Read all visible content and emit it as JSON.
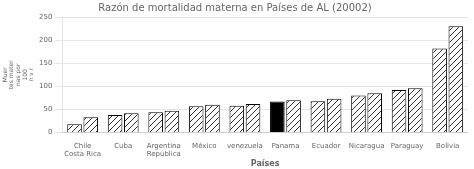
{
  "chart_data": {
    "type": "bar",
    "title": "Razón de mortalidad materna en Países de AL (20002)",
    "xlabel": "Países",
    "ylabel": "Muer\ntes mater\nnas por\n100\nn v r",
    "categories": [
      "Chile\nCosta Rica",
      "Cuba",
      "Argentina\nRepublica",
      "México",
      "venezuela",
      "Panama",
      "Ecuador",
      "Nicaragua",
      "Paraguay",
      "Bolivia"
    ],
    "series": [
      {
        "values": [
          18,
          38,
          44,
          57,
          58,
          67,
          68,
          80,
          92,
          182
        ],
        "colors": [
          "#ffffff",
          "#ffffff",
          "#ffffff",
          "#ffffff",
          "#ffffff",
          "#000000",
          "#ffffff",
          "#ffffff",
          "#ffffff",
          "#ffffff"
        ]
      },
      {
        "values": [
          33,
          42,
          47,
          60,
          62,
          70,
          73,
          85,
          96,
          230
        ],
        "colors": [
          "#ffffff",
          "#ffffff",
          "#ffffff",
          "#ffffff",
          "#ffffff",
          "#ffffff",
          "#ffffff",
          "#ffffff",
          "#ffffff",
          "#ffffff"
        ]
      }
    ],
    "ylim": [
      0,
      250
    ],
    "yticks": [
      0,
      50,
      100,
      150,
      200,
      250
    ],
    "grid": true
  }
}
